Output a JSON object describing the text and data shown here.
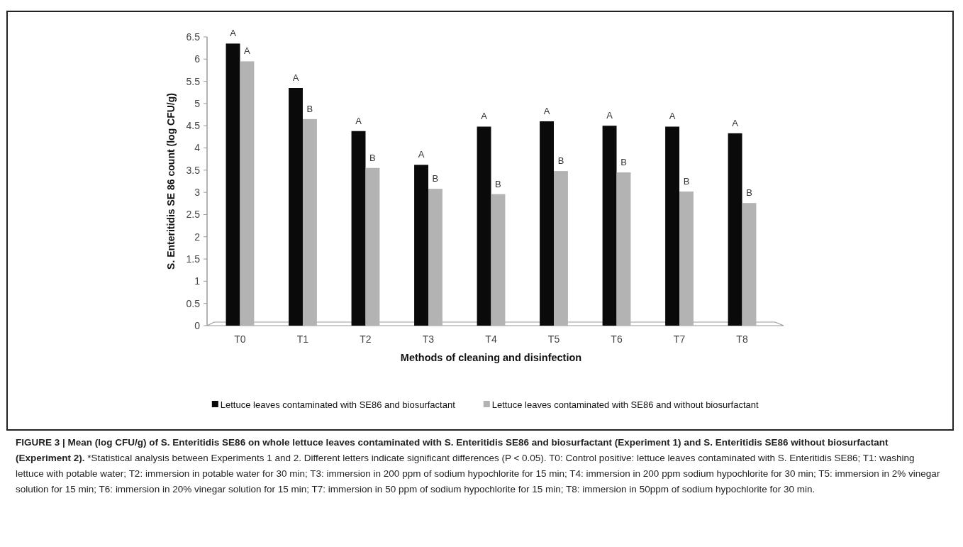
{
  "chart_data": {
    "type": "bar",
    "categories": [
      "T0",
      "T1",
      "T2",
      "T3",
      "T4",
      "T5",
      "T6",
      "T7",
      "T8"
    ],
    "series": [
      {
        "name": "Lettuce leaves contaminated with SE86 and biosurfactant",
        "color": "#0a0a0a",
        "values": [
          6.35,
          5.35,
          4.38,
          3.62,
          4.48,
          4.6,
          4.5,
          4.48,
          4.33
        ],
        "value_labels": [
          "A",
          "A",
          "A",
          "A",
          "A",
          "A",
          "A",
          "A",
          "A"
        ]
      },
      {
        "name": "Lettuce leaves contaminated with SE86 and without  biosurfactant",
        "color": "#b3b3b3",
        "values": [
          5.95,
          4.65,
          3.55,
          3.08,
          2.96,
          3.48,
          3.45,
          3.02,
          2.76
        ],
        "value_labels": [
          "A",
          "B",
          "B",
          "B",
          "B",
          "B",
          "B",
          "B",
          "B"
        ]
      }
    ],
    "xlabel": "Methods of cleaning and disinfection",
    "ylabel": "S. Enteritidis  SE 86 count  (log CFU/g)",
    "ylim": [
      0,
      6.5
    ],
    "yticks": [
      0,
      0.5,
      1,
      1.5,
      2,
      2.5,
      3,
      3.5,
      4,
      4.5,
      5,
      5.5,
      6,
      6.5
    ],
    "grid": false,
    "legend": "bottom",
    "annotations": [
      "FIGURE 3 | Mean (log CFU/g) of S. Enteritidis SE86 on whole lettuce leaves contaminated with S. Enteritidis SE86 and biosurfactant (Experiment 1) and S. Enteritidis SE86 without biosurfactant (Experiment 2).",
      "*Statistical analysis between Experiments 1 and 2. Different letters indicate significant differences (P < 0.05). T0: Control positive: lettuce leaves contaminated with S. Enteritidis SE86; T1: washing lettuce with potable water; T2: immersion in potable water for 30 min; T3: immersion in 200 ppm of sodium hypochlorite for 15 min; T4: immersion in 200 ppm sodium hypochlorite for 30 min; T5: immersion in 2% vinegar solution for 15 min; T6: immersion in 20% vinegar solution for 15 min; T7: immersion in 50 ppm of sodium hypochlorite for 15 min; T8: immersion in 50ppm of sodium hypochlorite for 30 min."
    ]
  }
}
